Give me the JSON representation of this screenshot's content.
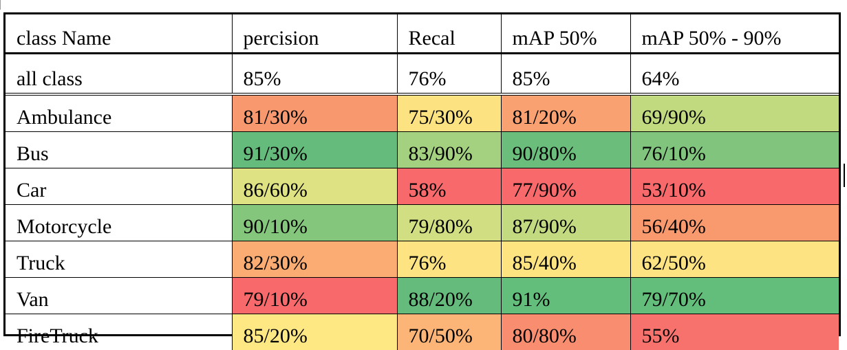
{
  "table": {
    "headers": [
      "class Name",
      "percision",
      "Recal",
      "mAP 50%",
      "mAP 50% - 90%"
    ],
    "summary": {
      "label": "all class",
      "values": [
        "85%",
        "76%",
        "85%",
        "64%"
      ]
    },
    "rows": [
      {
        "name": "Ambulance",
        "cells": [
          {
            "value": "81/30%",
            "color": "#f8986e"
          },
          {
            "value": "75/30%",
            "color": "#fde281"
          },
          {
            "value": "81/20%",
            "color": "#f9a171"
          },
          {
            "value": "69/90%",
            "color": "#c1da7f"
          }
        ]
      },
      {
        "name": "Bus",
        "cells": [
          {
            "value": "91/30%",
            "color": "#64bb7b"
          },
          {
            "value": "83/90%",
            "color": "#a3d17f"
          },
          {
            "value": "90/80%",
            "color": "#6bbd7b"
          },
          {
            "value": "76/10%",
            "color": "#80c47d"
          }
        ]
      },
      {
        "name": "Car",
        "cells": [
          {
            "value": "86/60%",
            "color": "#dfe283"
          },
          {
            "value": "58%",
            "color": "#f8696b"
          },
          {
            "value": "77/90%",
            "color": "#f8696b"
          },
          {
            "value": "53/10%",
            "color": "#f8696b"
          }
        ]
      },
      {
        "name": "Motorcycle",
        "cells": [
          {
            "value": "90/10%",
            "color": "#85c67d"
          },
          {
            "value": "79/80%",
            "color": "#d2de82"
          },
          {
            "value": "87/90%",
            "color": "#c3da80"
          },
          {
            "value": "56/40%",
            "color": "#f99a6e"
          }
        ]
      },
      {
        "name": "Truck",
        "cells": [
          {
            "value": "82/30%",
            "color": "#fbac73"
          },
          {
            "value": "76%",
            "color": "#fee382"
          },
          {
            "value": "85/40%",
            "color": "#fde481"
          },
          {
            "value": "62/50%",
            "color": "#fee382"
          }
        ]
      },
      {
        "name": "Van",
        "cells": [
          {
            "value": "79/10%",
            "color": "#f8696b"
          },
          {
            "value": "88/20%",
            "color": "#64bb7b"
          },
          {
            "value": "91%",
            "color": "#63be7b"
          },
          {
            "value": "79/70%",
            "color": "#63be7b"
          }
        ]
      },
      {
        "name": "FireTruck",
        "cells": [
          {
            "value": "85/20%",
            "color": "#fee883"
          },
          {
            "value": "70/50%",
            "color": "#fcb576"
          },
          {
            "value": "80/80%",
            "color": "#f88e6f"
          },
          {
            "value": "55%",
            "color": "#f8726d"
          }
        ]
      }
    ]
  }
}
